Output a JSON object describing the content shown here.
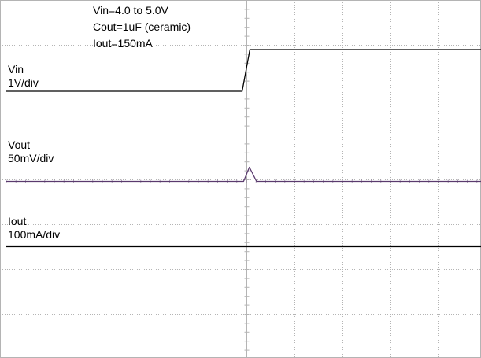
{
  "annotations": {
    "line1": "Vin=4.0 to 5.0V",
    "line2": "Cout=1uF (ceramic)",
    "line3": "Iout=150mA"
  },
  "colors": {
    "grid": "#b4b4b4",
    "trace": "#000000",
    "vout_trace": "#5a3a6e"
  },
  "chart_data": {
    "type": "line",
    "title": "",
    "grid": true,
    "divisions": {
      "x": 10,
      "y": 8
    },
    "series": [
      {
        "name": "Vin",
        "scale": "1V/div",
        "unit": "div",
        "x": [
          0,
          4.92,
          5.08,
          5.22,
          10
        ],
        "values": [
          0,
          0,
          1.0,
          1.0,
          1.0
        ]
      },
      {
        "name": "Vout",
        "scale": "50mV/div",
        "unit": "div",
        "x": [
          0,
          4.95,
          5.07,
          5.22,
          10
        ],
        "values": [
          0,
          0,
          0.34,
          0,
          0
        ]
      },
      {
        "name": "Iout",
        "scale": "100mA/div",
        "unit": "div",
        "x": [
          0,
          10
        ],
        "values": [
          0,
          0
        ]
      }
    ]
  }
}
